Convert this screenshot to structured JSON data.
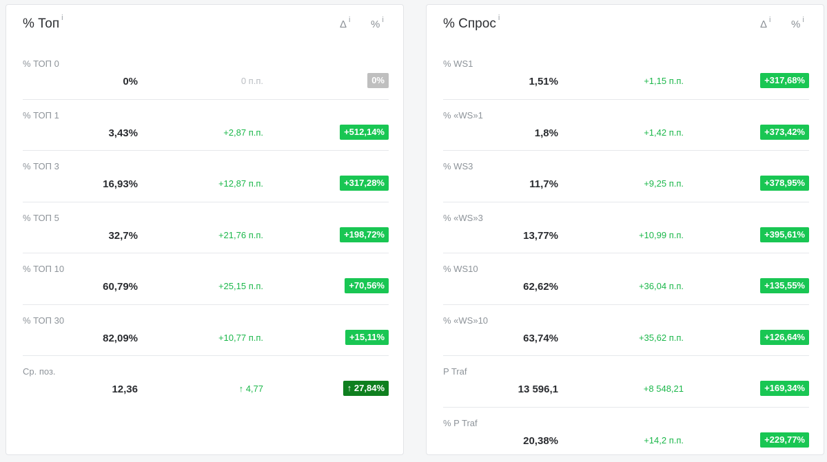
{
  "colors": {
    "badge_green": "#19c653",
    "badge_dark_green": "#0f7f1f",
    "badge_grey": "#bfbfbf",
    "delta_green": "#1bb74a",
    "delta_muted": "#b9bdc2"
  },
  "left": {
    "title": "% Топ",
    "info": "i",
    "col_delta": "Δ",
    "col_pct": "%",
    "rows": [
      {
        "label": "% ТОП 0",
        "value": "0%",
        "delta": "0 п.п.",
        "badge": "0%",
        "badge_style": "grey",
        "delta_style": "muted"
      },
      {
        "label": "% ТОП 1",
        "value": "3,43%",
        "delta": "+2,87 п.п.",
        "badge": "+512,14%"
      },
      {
        "label": "% ТОП 3",
        "value": "16,93%",
        "delta": "+12,87 п.п.",
        "badge": "+317,28%"
      },
      {
        "label": "% ТОП 5",
        "value": "32,7%",
        "delta": "+21,76 п.п.",
        "badge": "+198,72%"
      },
      {
        "label": "% ТОП 10",
        "value": "60,79%",
        "delta": "+25,15 п.п.",
        "badge": "+70,56%"
      },
      {
        "label": "% ТОП 30",
        "value": "82,09%",
        "delta": "+10,77 п.п.",
        "badge": "+15,11%"
      },
      {
        "label": "Ср. поз.",
        "value": "12,36",
        "delta": "↑ 4,77",
        "badge": "↑ 27,84%",
        "badge_style": "dark"
      }
    ]
  },
  "right": {
    "title": "% Спрос",
    "info": "i",
    "col_delta": "Δ",
    "col_pct": "%",
    "rows": [
      {
        "label": "% WS1",
        "value": "1,51%",
        "delta": "+1,15 п.п.",
        "badge": "+317,68%"
      },
      {
        "label": "% «WS»1",
        "value": "1,8%",
        "delta": "+1,42 п.п.",
        "badge": "+373,42%"
      },
      {
        "label": "% WS3",
        "value": "11,7%",
        "delta": "+9,25 п.п.",
        "badge": "+378,95%"
      },
      {
        "label": "% «WS»3",
        "value": "13,77%",
        "delta": "+10,99 п.п.",
        "badge": "+395,61%"
      },
      {
        "label": "% WS10",
        "value": "62,62%",
        "delta": "+36,04 п.п.",
        "badge": "+135,55%"
      },
      {
        "label": "% «WS»10",
        "value": "63,74%",
        "delta": "+35,62 п.п.",
        "badge": "+126,64%"
      },
      {
        "label": "P Traf",
        "value": "13 596,1",
        "delta": "+8 548,21",
        "badge": "+169,34%"
      },
      {
        "label": "% P Traf",
        "value": "20,38%",
        "delta": "+14,2 п.п.",
        "badge": "+229,77%"
      }
    ]
  }
}
